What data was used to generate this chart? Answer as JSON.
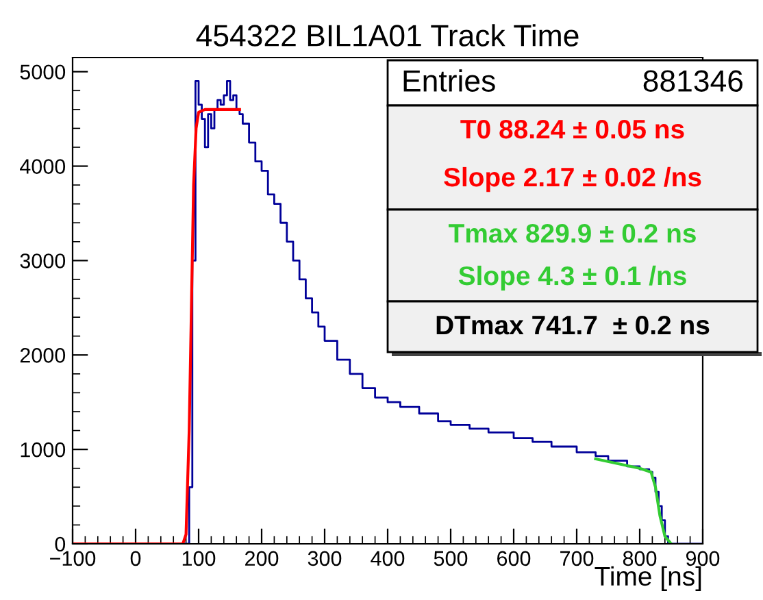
{
  "chart_data": {
    "type": "step",
    "title": "454322 BIL1A01 Track Time",
    "xlabel": "Time [ns]",
    "xlim": [
      -100,
      900
    ],
    "ylim": [
      0,
      5150
    ],
    "xticks": [
      {
        "value": -100,
        "label": "−100"
      },
      0,
      100,
      200,
      300,
      400,
      500,
      600,
      700,
      800,
      900
    ],
    "yticks": [
      0,
      1000,
      2000,
      3000,
      4000,
      5000
    ],
    "grid": false,
    "series": [
      {
        "color": "#000099",
        "x": [
          -100,
          70,
          80,
          85,
          90,
          95,
          100,
          105,
          110,
          115,
          120,
          125,
          130,
          135,
          140,
          145,
          150,
          155,
          160,
          165,
          170,
          180,
          190,
          200,
          210,
          220,
          230,
          240,
          250,
          260,
          270,
          280,
          290,
          300,
          320,
          340,
          360,
          380,
          400,
          420,
          450,
          480,
          500,
          530,
          560,
          600,
          630,
          660,
          700,
          730,
          750,
          780,
          800,
          815,
          820,
          825,
          830,
          835,
          840,
          845,
          900
        ],
        "values": [
          0,
          0,
          0,
          600,
          3000,
          4900,
          4650,
          4500,
          4200,
          4550,
          4400,
          4600,
          4700,
          4650,
          4750,
          4900,
          4700,
          4750,
          4600,
          4550,
          4450,
          4250,
          4050,
          3950,
          3700,
          3600,
          3400,
          3200,
          3000,
          2800,
          2600,
          2450,
          2300,
          2150,
          1950,
          1800,
          1650,
          1550,
          1500,
          1450,
          1380,
          1300,
          1260,
          1220,
          1180,
          1120,
          1080,
          1030,
          970,
          930,
          880,
          820,
          790,
          760,
          700,
          550,
          400,
          250,
          80,
          0,
          0
        ]
      },
      {
        "type": "line",
        "color": "#ff0000",
        "x": [
          -100,
          75,
          80,
          85,
          88,
          92,
          96,
          100,
          110,
          165
        ],
        "values": [
          0,
          0,
          100,
          1200,
          2300,
          3800,
          4400,
          4570,
          4600,
          4600
        ]
      },
      {
        "type": "line",
        "color": "#33cc33",
        "x": [
          730,
          800,
          818,
          825,
          832,
          840,
          850
        ],
        "values": [
          900,
          800,
          760,
          600,
          300,
          80,
          0
        ]
      }
    ],
    "annotations": [
      "Entries",
      "881346",
      "T0 88.24 ± 0.05 ns",
      "Slope 2.17 ± 0.02 /ns",
      "Tmax 829.9 ± 0.2 ns",
      "Slope 4.3 ± 0.1 /ns",
      "DTmax 741.7  ± 0.2 ns"
    ]
  }
}
